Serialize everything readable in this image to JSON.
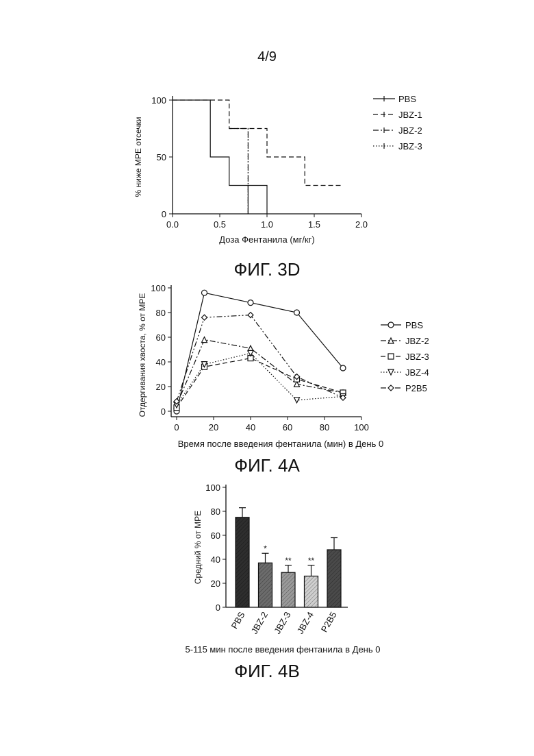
{
  "page_number": "4/9",
  "captions": {
    "fig3d": "ФИГ. 3D",
    "fig4a": "ФИГ. 4A",
    "fig4b": "ФИГ. 4B"
  },
  "chart_data": [
    {
      "id": "fig3d",
      "type": "line",
      "step": true,
      "xlabel": "Доза Фентанила (мг/кг)",
      "ylabel": "% ниже MPE отсечки",
      "xlim": [
        0,
        2.0
      ],
      "ylim": [
        0,
        100
      ],
      "xticks": [
        0.0,
        0.5,
        1.0,
        1.5,
        2.0
      ],
      "xtick_labels": [
        "0.0",
        "0.5",
        "1.0",
        "1.5",
        "2.0"
      ],
      "yticks": [
        0,
        50,
        100
      ],
      "legend": "right",
      "series": [
        {
          "name": "PBS",
          "style": "solid",
          "points": [
            [
              0,
              100
            ],
            [
              0.4,
              100
            ],
            [
              0.4,
              50
            ],
            [
              0.6,
              50
            ],
            [
              0.6,
              25
            ],
            [
              0.8,
              25
            ],
            [
              0.8,
              0
            ],
            [
              0.8,
              25
            ],
            [
              1.0,
              25
            ],
            [
              1.0,
              0
            ]
          ]
        },
        {
          "name": "JBZ-1",
          "style": "dash",
          "points": [
            [
              0,
              100
            ],
            [
              0.6,
              100
            ],
            [
              0.6,
              75
            ],
            [
              1.0,
              75
            ],
            [
              1.0,
              50
            ],
            [
              1.4,
              50
            ],
            [
              1.4,
              25
            ],
            [
              1.8,
              25
            ]
          ]
        },
        {
          "name": "JBZ-2",
          "style": "dashdot",
          "points": [
            [
              0.6,
              75
            ],
            [
              0.8,
              75
            ],
            [
              0.8,
              50
            ],
            [
              0.8,
              0
            ]
          ]
        },
        {
          "name": "JBZ-3",
          "style": "dot",
          "points": [
            [
              0.8,
              75
            ],
            [
              0.8,
              0
            ]
          ]
        }
      ]
    },
    {
      "id": "fig4a",
      "type": "line",
      "xlabel": "Время после введения фентанила (мин) в День 0",
      "ylabel": "Отдергивания хвоста, % от MPE",
      "xlim": [
        0,
        100
      ],
      "ylim": [
        0,
        100
      ],
      "xticks": [
        0,
        20,
        40,
        60,
        80,
        100
      ],
      "yticks": [
        0,
        20,
        40,
        60,
        80,
        100
      ],
      "legend": "right",
      "x": [
        0,
        15,
        40,
        65,
        90
      ],
      "series": [
        {
          "name": "PBS",
          "marker": "circle",
          "style": "solid",
          "values": [
            0,
            96,
            88,
            80,
            35
          ]
        },
        {
          "name": "JBZ-2",
          "marker": "triangle-up",
          "style": "dashdot",
          "values": [
            5,
            58,
            51,
            22,
            15
          ]
        },
        {
          "name": "JBZ-3",
          "marker": "square",
          "style": "dash",
          "values": [
            3,
            36,
            43,
            26,
            15
          ]
        },
        {
          "name": "JBZ-4",
          "marker": "triangle-down",
          "style": "dot",
          "values": [
            5,
            38,
            47,
            9,
            12
          ]
        },
        {
          "name": "P2B5",
          "marker": "diamond",
          "style": "dashdotdot",
          "values": [
            8,
            76,
            78,
            28,
            11
          ]
        }
      ]
    },
    {
      "id": "fig4b",
      "type": "bar",
      "xlabel": "5-115 мин после введения фентанила в День 0",
      "ylabel": "Средний % от MPE",
      "ylim": [
        0,
        100
      ],
      "yticks": [
        0,
        20,
        40,
        60,
        80,
        100
      ],
      "categories": [
        "PBS",
        "JBZ-2",
        "JBZ-3",
        "JBZ-4",
        "P2B5"
      ],
      "values": [
        75,
        37,
        29,
        26,
        48
      ],
      "errors": [
        8,
        8,
        6,
        9,
        10
      ],
      "annotations": [
        "",
        "*",
        "**",
        "**",
        ""
      ],
      "bar_shades": [
        "#2e2e2e",
        "#6c6c6c",
        "#9a9a9a",
        "#cfcfcf",
        "#4a4a4a"
      ]
    }
  ]
}
